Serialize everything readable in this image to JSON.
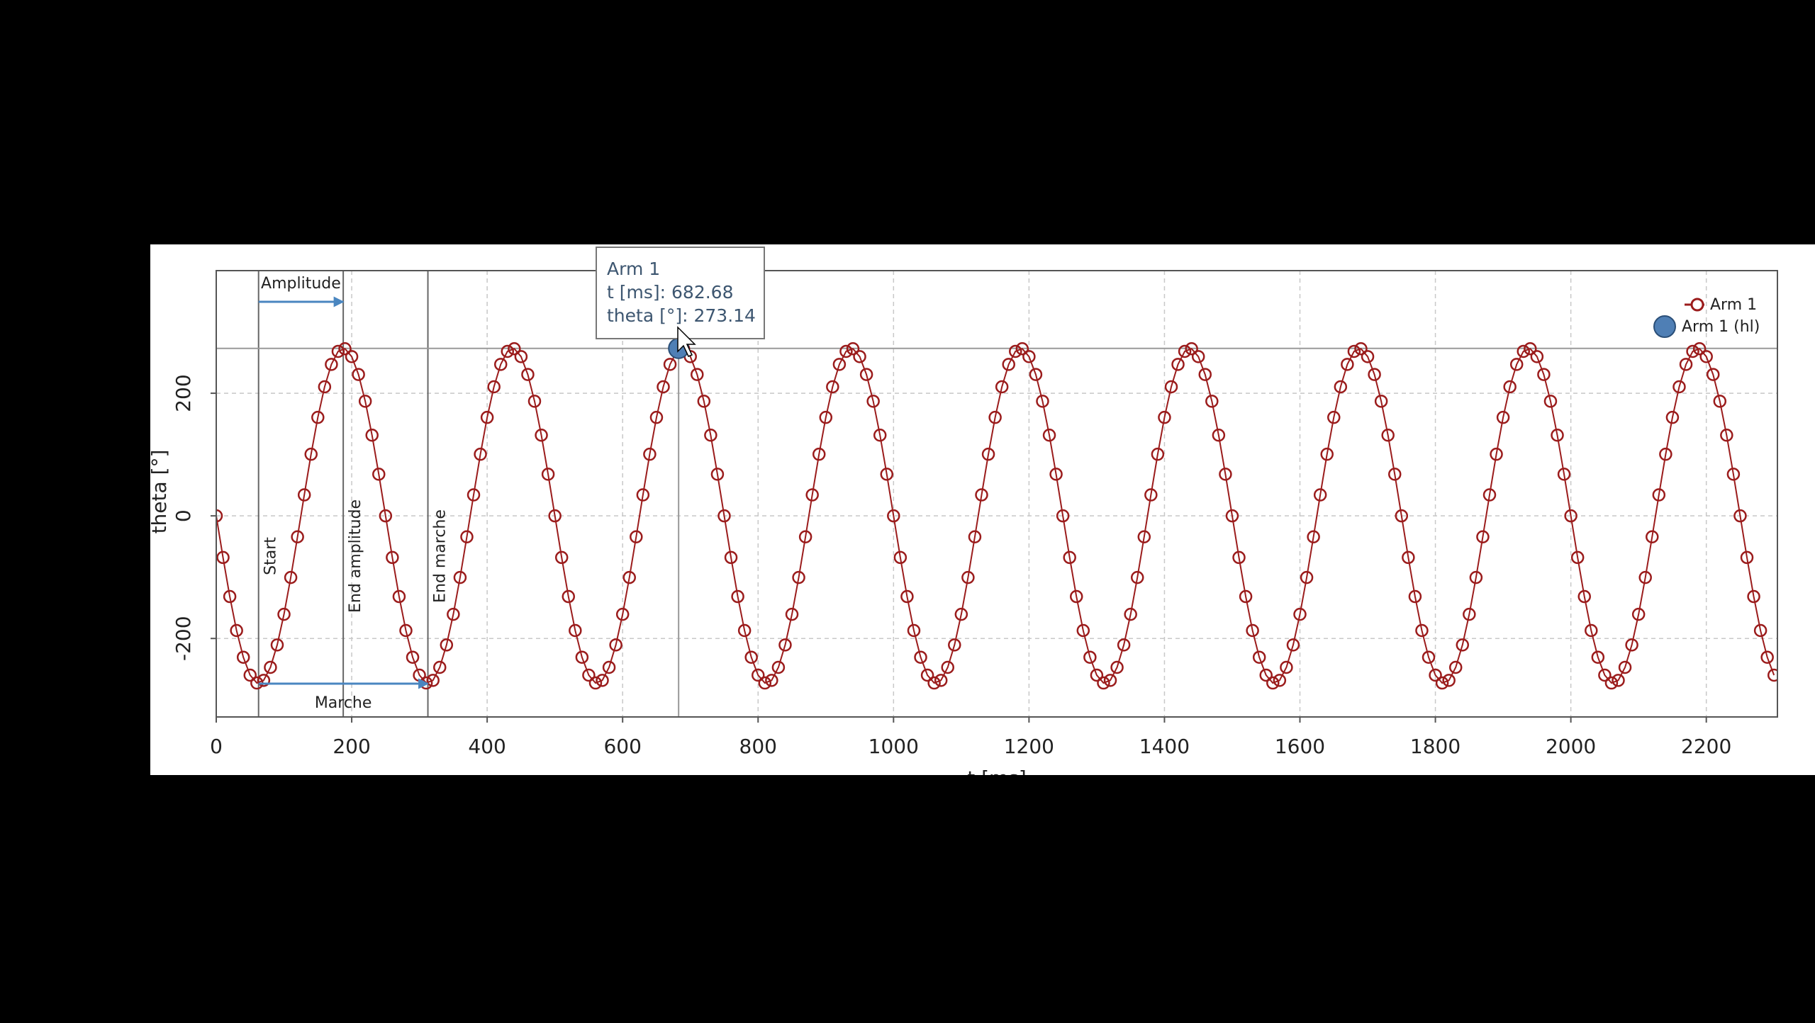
{
  "chart_data": {
    "type": "scatter",
    "x_label": "t [ms]",
    "y_label": "theta [°]",
    "x": [
      0,
      10,
      20,
      30,
      40,
      50,
      60,
      70,
      80,
      90,
      100,
      110,
      120,
      130,
      140,
      150,
      160,
      170,
      180,
      190,
      200,
      210,
      220,
      230,
      240,
      250,
      260,
      270,
      280,
      290,
      300,
      310,
      320,
      330,
      340,
      350,
      360,
      370,
      380,
      390,
      400,
      410,
      420,
      430,
      440,
      450,
      460,
      470,
      480,
      490,
      500,
      510,
      520,
      530,
      540,
      550,
      560,
      570,
      580,
      590,
      600,
      610,
      620,
      630,
      640,
      650,
      660,
      670,
      680,
      690,
      700,
      710,
      720,
      730,
      740,
      750,
      760,
      770,
      780,
      790,
      800,
      810,
      820,
      830,
      840,
      850,
      860,
      870,
      880,
      890,
      900,
      910,
      920,
      930,
      940,
      950,
      960,
      970,
      980,
      990,
      1000,
      1010,
      1020,
      1030,
      1040,
      1050,
      1060,
      1070,
      1080,
      1090,
      1100,
      1110,
      1120,
      1130,
      1140,
      1150,
      1160,
      1170,
      1180,
      1190,
      1200,
      1210,
      1220,
      1230,
      1240,
      1250,
      1260,
      1270,
      1280,
      1290,
      1300,
      1310,
      1320,
      1330,
      1340,
      1350,
      1360,
      1370,
      1380,
      1390,
      1400,
      1410,
      1420,
      1430,
      1440,
      1450,
      1460,
      1470,
      1480,
      1490,
      1500,
      1510,
      1520,
      1530,
      1540,
      1550,
      1560,
      1570,
      1580,
      1590,
      1600,
      1610,
      1620,
      1630,
      1640,
      1650,
      1660,
      1670,
      1680,
      1690,
      1700,
      1710,
      1720,
      1730,
      1740,
      1750,
      1760,
      1770,
      1780,
      1790,
      1800,
      1810,
      1820,
      1830,
      1840,
      1850,
      1860,
      1870,
      1880,
      1890,
      1900,
      1910,
      1920,
      1930,
      1940,
      1950,
      1960,
      1970,
      1980,
      1990,
      2000,
      2010,
      2020,
      2030,
      2040,
      2050,
      2060,
      2070,
      2080,
      2090,
      2100,
      2110,
      2120,
      2130,
      2140,
      2150,
      2160,
      2170,
      2180,
      2190,
      2200,
      2210,
      2220,
      2230,
      2240,
      2250,
      2260,
      2270,
      2280,
      2290,
      2300
    ],
    "series": [
      {
        "name": "Arm 1",
        "color": "#9b1c1c",
        "values": [
          0,
          -67.9,
          -131.6,
          -187,
          -230.6,
          -259.8,
          -272.6,
          -268.3,
          -247.1,
          -210.5,
          -160.6,
          -100.5,
          -34.2,
          34.2,
          100.5,
          160.6,
          210.5,
          247.1,
          268.3,
          272.6,
          259.8,
          230.6,
          187,
          131.6,
          67.9,
          0,
          -67.9,
          -131.6,
          -187,
          -230.6,
          -259.8,
          -272.6,
          -268.3,
          -247.1,
          -210.5,
          -160.6,
          -100.5,
          -34.2,
          34.2,
          100.5,
          160.6,
          210.5,
          247.1,
          268.3,
          272.6,
          259.8,
          230.6,
          187,
          131.6,
          67.9,
          0,
          -67.9,
          -131.6,
          -187,
          -230.6,
          -259.8,
          -272.6,
          -268.3,
          -247.1,
          -210.5,
          -160.6,
          -100.5,
          -34.2,
          34.2,
          100.5,
          160.6,
          210.5,
          247.1,
          268.3,
          272.6,
          259.8,
          230.6,
          187,
          131.6,
          67.9,
          0,
          -67.9,
          -131.6,
          -187,
          -230.6,
          -259.8,
          -272.6,
          -268.3,
          -247.1,
          -210.5,
          -160.6,
          -100.5,
          -34.2,
          34.2,
          100.5,
          160.6,
          210.5,
          247.1,
          268.3,
          272.6,
          259.8,
          230.6,
          187,
          131.6,
          67.9,
          0,
          -67.9,
          -131.6,
          -187,
          -230.6,
          -259.8,
          -272.6,
          -268.3,
          -247.1,
          -210.5,
          -160.6,
          -100.5,
          -34.2,
          34.2,
          100.5,
          160.6,
          210.5,
          247.1,
          268.3,
          272.6,
          259.8,
          230.6,
          187,
          131.6,
          67.9,
          0,
          -67.9,
          -131.6,
          -187,
          -230.6,
          -259.8,
          -272.6,
          -268.3,
          -247.1,
          -210.5,
          -160.6,
          -100.5,
          -34.2,
          34.2,
          100.5,
          160.6,
          210.5,
          247.1,
          268.3,
          272.6,
          259.8,
          230.6,
          187,
          131.6,
          67.9,
          0,
          -67.9,
          -131.6,
          -187,
          -230.6,
          -259.8,
          -272.6,
          -268.3,
          -247.1,
          -210.5,
          -160.6,
          -100.5,
          -34.2,
          34.2,
          100.5,
          160.6,
          210.5,
          247.1,
          268.3,
          272.6,
          259.8,
          230.6,
          187,
          131.6,
          67.9,
          0,
          -67.9,
          -131.6,
          -187,
          -230.6,
          -259.8,
          -272.6,
          -268.3,
          -247.1,
          -210.5,
          -160.6,
          -100.5,
          -34.2,
          34.2,
          100.5,
          160.6,
          210.5,
          247.1,
          268.3,
          272.6,
          259.8,
          230.6,
          187,
          131.6,
          67.9,
          0,
          -67.9,
          -131.6,
          -187,
          -230.6,
          -259.8,
          -272.6,
          -268.3,
          -247.1,
          -210.5,
          -160.6,
          -100.5,
          -34.2,
          34.2,
          100.5,
          160.6,
          210.5,
          247.1,
          268.3,
          272.6,
          259.8,
          230.6,
          187,
          131.6,
          67.9,
          0,
          -67.9,
          -131.6,
          -187,
          -230.6,
          -259.8
        ]
      }
    ],
    "highlight": {
      "name": "Arm 1 (hl)",
      "color": "#4f7fb5",
      "x": 682.68,
      "y": 273.14
    },
    "tooltip": {
      "title": "Arm 1",
      "lines": [
        "t [ms]: 682.68",
        "theta [°]: 273.14"
      ]
    },
    "markers": [
      {
        "label": "Start",
        "x": 62.5
      },
      {
        "label": "End amplitude",
        "x": 187.5
      },
      {
        "label": "End marche",
        "x": 312.5
      }
    ],
    "ranges": [
      {
        "label": "Amplitude",
        "from": 62.5,
        "to": 187.5,
        "position": "top"
      },
      {
        "label": "Marche",
        "from": 62.5,
        "to": 312.5,
        "position": "bottom"
      }
    ],
    "xlim": [
      0,
      2305
    ],
    "ylim": [
      -328,
      400
    ],
    "xticks": [
      0,
      200,
      400,
      600,
      800,
      1000,
      1200,
      1400,
      1600,
      1800,
      2000,
      2200
    ],
    "yticks": [
      -200,
      0,
      200
    ],
    "grid": true,
    "legend": "top-right"
  }
}
